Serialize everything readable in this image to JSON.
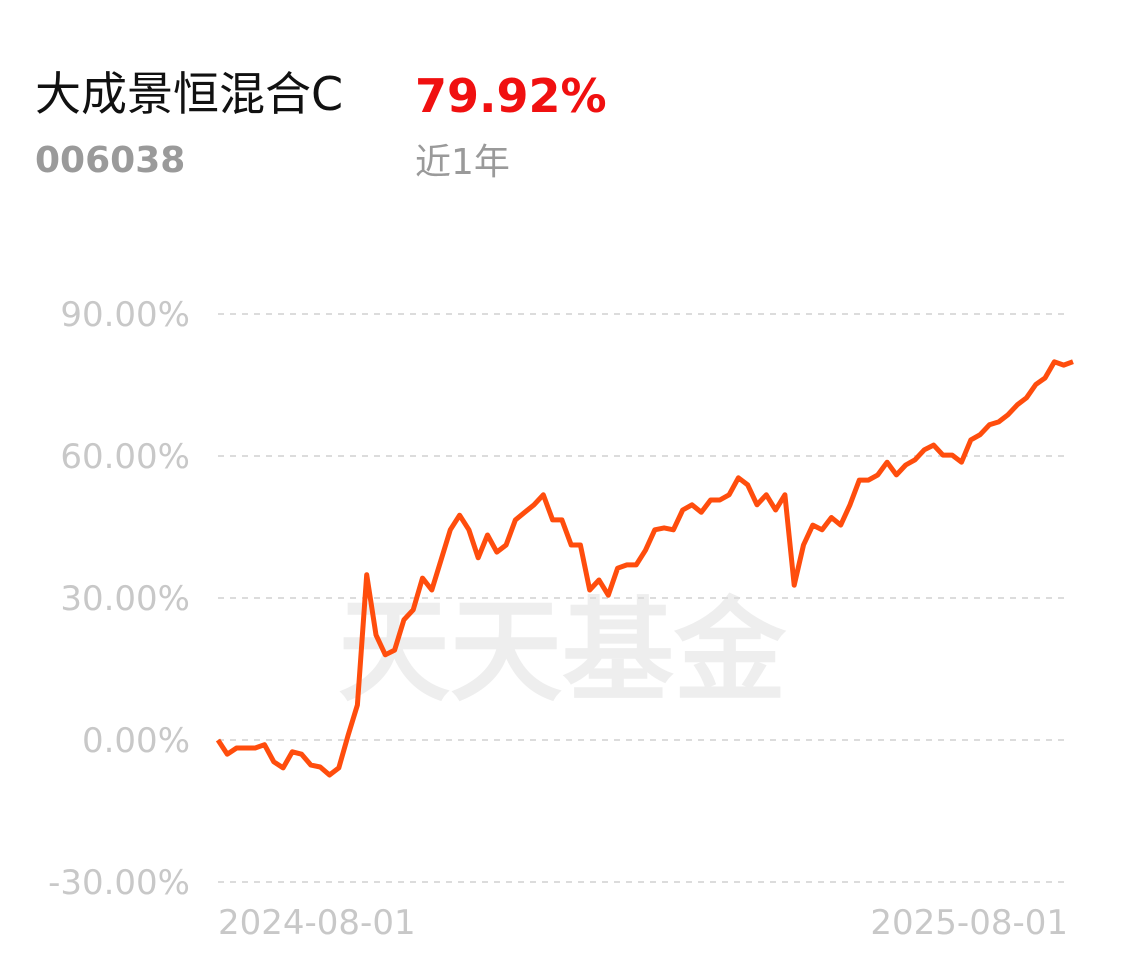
{
  "header": {
    "title": "大成景恒混合C",
    "code": "006038",
    "return": "79.92%",
    "period": "近1年"
  },
  "chart_data": {
    "type": "line",
    "watermark": "天天基金",
    "xlim": [
      0,
      92
    ],
    "xticks": [
      {
        "value": 0,
        "label": "2024-08-01"
      },
      {
        "value": 92,
        "label": "2025-08-01"
      }
    ],
    "ylim": [
      -30,
      90
    ],
    "yticks": [
      {
        "value": -30,
        "label": "-30.00%"
      },
      {
        "value": 0,
        "label": "0.00%"
      },
      {
        "value": 30,
        "label": "30.00%"
      },
      {
        "value": 60,
        "label": "60.00%"
      },
      {
        "value": 90,
        "label": "90.00%"
      }
    ],
    "grid": true,
    "series": [
      {
        "color": "#ff4d0d",
        "values": [
          0,
          -3,
          -1.7,
          -1.7,
          -1.7,
          -1,
          -4.6,
          -5.9,
          -2.5,
          -3,
          -5.3,
          -5.7,
          -7.4,
          -5.9,
          1,
          7.4,
          34.9,
          22.2,
          18,
          19,
          25.4,
          27.5,
          34.2,
          31.7,
          38,
          44.4,
          47.5,
          44.4,
          38.5,
          43.3,
          39.7,
          41.2,
          46.5,
          48.1,
          49.7,
          51.8,
          46.5,
          46.5,
          41.2,
          41.2,
          31.7,
          33.8,
          30.6,
          36.3,
          37,
          37,
          40.1,
          44.4,
          44.8,
          44.4,
          48.6,
          49.7,
          48.1,
          50.7,
          50.7,
          51.8,
          55.4,
          53.9,
          49.7,
          51.8,
          48.6,
          51.8,
          32.7,
          41.2,
          45.4,
          44.4,
          47,
          45.4,
          49.7,
          54.9,
          54.9,
          56,
          58.7,
          56,
          58.1,
          59.2,
          61.3,
          62.3,
          60.2,
          60.2,
          58.7,
          63.4,
          64.5,
          66.6,
          67.2,
          68.7,
          70.8,
          72.3,
          75.1,
          76.5,
          79.9,
          79.2,
          79.92
        ]
      }
    ]
  }
}
